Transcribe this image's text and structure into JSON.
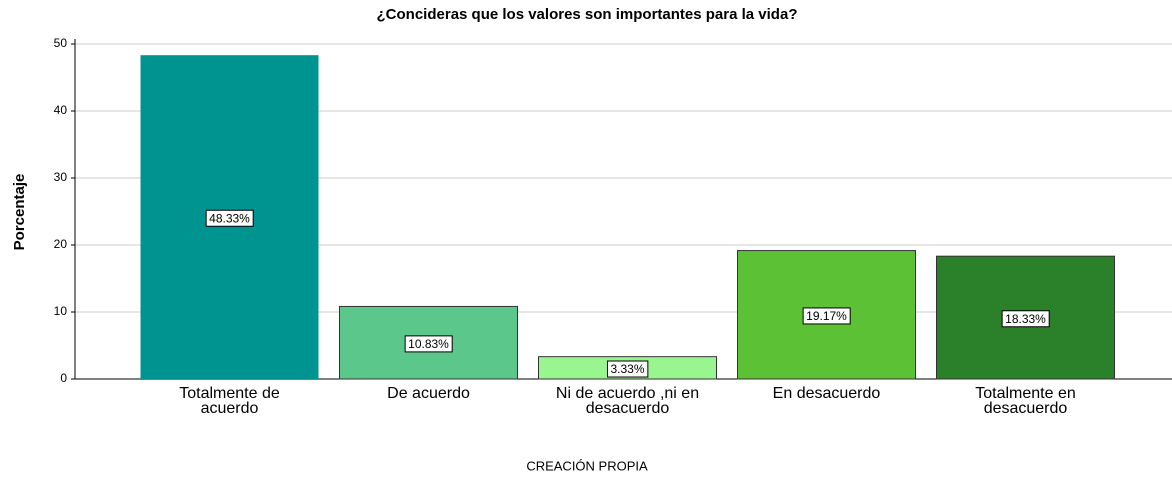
{
  "chart_data": {
    "type": "bar",
    "title": "¿Concideras que los valores son importantes para la vida?",
    "y_label": "Porcentaje",
    "footer": "CREACIÓN PROPIA",
    "categories": [
      "Totalmente de acuerdo",
      "De acuerdo",
      "Ni de acuerdo ,ni en desacuerdo",
      "En desacuerdo",
      "Totalmente en desacuerdo"
    ],
    "values": [
      48.33,
      10.83,
      3.33,
      19.17,
      18.33
    ],
    "value_labels": [
      "48.33%",
      "10.83%",
      "3.33%",
      "19.17%",
      "18.33%"
    ],
    "colors": [
      "#009490",
      "#5cc78a",
      "#99f58f",
      "#5dc136",
      "#2a8129"
    ],
    "ylim": [
      0,
      50
    ],
    "yticks": [
      0,
      10,
      20,
      30,
      40,
      50
    ],
    "grid": true
  }
}
